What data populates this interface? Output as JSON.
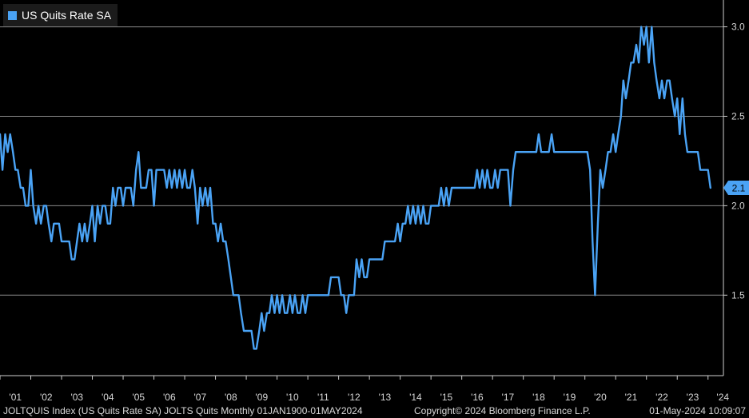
{
  "colors": {
    "background": "#000000",
    "line": "#4aa3f5",
    "grid": "#8a8a8a",
    "axis": "#cfcfcf",
    "text": "#d8d8d8",
    "last_label_bg": "#4aa3f5"
  },
  "legend": {
    "label": "US Quits Rate SA"
  },
  "footer": {
    "left": "JOLTQUIS Index (US Quits Rate SA) JOLTS Quits  Monthly 01JAN1900-01MAY2024",
    "middle": "Copyright© 2024 Bloomberg Finance L.P.",
    "right": "01-May-2024 10:09:07"
  },
  "chart_data": {
    "type": "line",
    "title": "",
    "xlabel": "",
    "ylabel": "",
    "ylim": [
      1.05,
      3.15
    ],
    "xlim": [
      2001.0,
      2024.5
    ],
    "y_ticks": [
      1.5,
      2.0,
      2.5,
      3.0
    ],
    "y_tick_labels": [
      "1.5",
      "2.0",
      "2.5",
      "3.0"
    ],
    "x_ticks": [
      2001,
      2002,
      2003,
      2004,
      2005,
      2006,
      2007,
      2008,
      2009,
      2010,
      2011,
      2012,
      2013,
      2014,
      2015,
      2016,
      2017,
      2018,
      2019,
      2020,
      2021,
      2022,
      2023,
      2024
    ],
    "x_tick_labels": [
      "'01",
      "'02",
      "'03",
      "'04",
      "'05",
      "'06",
      "'07",
      "'08",
      "'09",
      "'10",
      "'11",
      "'12",
      "'13",
      "'14",
      "'15",
      "'16",
      "'17",
      "'18",
      "'19",
      "'20",
      "'21",
      "'22",
      "'23",
      "'24"
    ],
    "grid": "horizontal",
    "legend_position": "top-left",
    "last_value_label": "2.1",
    "series": [
      {
        "name": "US Quits Rate SA",
        "points": [
          [
            2001.0,
            2.4
          ],
          [
            2001.08,
            2.2
          ],
          [
            2001.17,
            2.4
          ],
          [
            2001.25,
            2.3
          ],
          [
            2001.33,
            2.4
          ],
          [
            2001.42,
            2.3
          ],
          [
            2001.5,
            2.2
          ],
          [
            2001.58,
            2.2
          ],
          [
            2001.67,
            2.1
          ],
          [
            2001.75,
            2.1
          ],
          [
            2001.83,
            2.0
          ],
          [
            2001.92,
            2.0
          ],
          [
            2002.0,
            2.2
          ],
          [
            2002.08,
            2.0
          ],
          [
            2002.17,
            1.9
          ],
          [
            2002.25,
            2.0
          ],
          [
            2002.33,
            1.9
          ],
          [
            2002.42,
            2.0
          ],
          [
            2002.5,
            2.0
          ],
          [
            2002.58,
            1.9
          ],
          [
            2002.67,
            1.8
          ],
          [
            2002.75,
            1.9
          ],
          [
            2002.83,
            1.9
          ],
          [
            2002.92,
            1.9
          ],
          [
            2003.0,
            1.8
          ],
          [
            2003.08,
            1.8
          ],
          [
            2003.17,
            1.8
          ],
          [
            2003.25,
            1.8
          ],
          [
            2003.33,
            1.7
          ],
          [
            2003.42,
            1.7
          ],
          [
            2003.5,
            1.8
          ],
          [
            2003.58,
            1.9
          ],
          [
            2003.67,
            1.8
          ],
          [
            2003.75,
            1.9
          ],
          [
            2003.83,
            1.8
          ],
          [
            2003.92,
            1.9
          ],
          [
            2004.0,
            2.0
          ],
          [
            2004.08,
            1.8
          ],
          [
            2004.17,
            2.0
          ],
          [
            2004.25,
            1.9
          ],
          [
            2004.33,
            2.0
          ],
          [
            2004.42,
            2.0
          ],
          [
            2004.5,
            1.9
          ],
          [
            2004.58,
            1.9
          ],
          [
            2004.67,
            2.1
          ],
          [
            2004.75,
            2.0
          ],
          [
            2004.83,
            2.1
          ],
          [
            2004.92,
            2.1
          ],
          [
            2005.0,
            2.0
          ],
          [
            2005.08,
            2.1
          ],
          [
            2005.17,
            2.1
          ],
          [
            2005.25,
            2.1
          ],
          [
            2005.33,
            2.0
          ],
          [
            2005.42,
            2.2
          ],
          [
            2005.5,
            2.3
          ],
          [
            2005.58,
            2.1
          ],
          [
            2005.67,
            2.1
          ],
          [
            2005.75,
            2.1
          ],
          [
            2005.83,
            2.2
          ],
          [
            2005.92,
            2.2
          ],
          [
            2006.0,
            2.0
          ],
          [
            2006.08,
            2.2
          ],
          [
            2006.17,
            2.2
          ],
          [
            2006.25,
            2.2
          ],
          [
            2006.33,
            2.2
          ],
          [
            2006.42,
            2.1
          ],
          [
            2006.5,
            2.2
          ],
          [
            2006.58,
            2.1
          ],
          [
            2006.67,
            2.2
          ],
          [
            2006.75,
            2.1
          ],
          [
            2006.83,
            2.2
          ],
          [
            2006.92,
            2.1
          ],
          [
            2007.0,
            2.2
          ],
          [
            2007.08,
            2.1
          ],
          [
            2007.17,
            2.1
          ],
          [
            2007.25,
            2.2
          ],
          [
            2007.33,
            2.1
          ],
          [
            2007.42,
            1.9
          ],
          [
            2007.5,
            2.1
          ],
          [
            2007.58,
            2.0
          ],
          [
            2007.67,
            2.1
          ],
          [
            2007.75,
            2.0
          ],
          [
            2007.83,
            2.1
          ],
          [
            2007.92,
            1.9
          ],
          [
            2008.0,
            1.9
          ],
          [
            2008.08,
            1.8
          ],
          [
            2008.17,
            1.9
          ],
          [
            2008.25,
            1.8
          ],
          [
            2008.33,
            1.8
          ],
          [
            2008.42,
            1.7
          ],
          [
            2008.5,
            1.6
          ],
          [
            2008.58,
            1.5
          ],
          [
            2008.67,
            1.5
          ],
          [
            2008.75,
            1.5
          ],
          [
            2008.83,
            1.4
          ],
          [
            2008.92,
            1.3
          ],
          [
            2009.0,
            1.3
          ],
          [
            2009.08,
            1.3
          ],
          [
            2009.17,
            1.3
          ],
          [
            2009.25,
            1.2
          ],
          [
            2009.33,
            1.2
          ],
          [
            2009.42,
            1.3
          ],
          [
            2009.5,
            1.4
          ],
          [
            2009.58,
            1.3
          ],
          [
            2009.67,
            1.4
          ],
          [
            2009.75,
            1.4
          ],
          [
            2009.83,
            1.5
          ],
          [
            2009.92,
            1.4
          ],
          [
            2010.0,
            1.5
          ],
          [
            2010.08,
            1.4
          ],
          [
            2010.17,
            1.5
          ],
          [
            2010.25,
            1.4
          ],
          [
            2010.33,
            1.4
          ],
          [
            2010.42,
            1.5
          ],
          [
            2010.5,
            1.4
          ],
          [
            2010.58,
            1.5
          ],
          [
            2010.67,
            1.4
          ],
          [
            2010.75,
            1.4
          ],
          [
            2010.83,
            1.5
          ],
          [
            2010.92,
            1.4
          ],
          [
            2011.0,
            1.5
          ],
          [
            2011.08,
            1.5
          ],
          [
            2011.17,
            1.5
          ],
          [
            2011.25,
            1.5
          ],
          [
            2011.33,
            1.5
          ],
          [
            2011.42,
            1.5
          ],
          [
            2011.5,
            1.5
          ],
          [
            2011.58,
            1.5
          ],
          [
            2011.67,
            1.5
          ],
          [
            2011.75,
            1.6
          ],
          [
            2011.83,
            1.6
          ],
          [
            2011.92,
            1.6
          ],
          [
            2012.0,
            1.6
          ],
          [
            2012.08,
            1.5
          ],
          [
            2012.17,
            1.5
          ],
          [
            2012.25,
            1.4
          ],
          [
            2012.33,
            1.5
          ],
          [
            2012.42,
            1.5
          ],
          [
            2012.5,
            1.5
          ],
          [
            2012.58,
            1.7
          ],
          [
            2012.67,
            1.6
          ],
          [
            2012.75,
            1.7
          ],
          [
            2012.83,
            1.6
          ],
          [
            2012.92,
            1.6
          ],
          [
            2013.0,
            1.7
          ],
          [
            2013.08,
            1.7
          ],
          [
            2013.17,
            1.7
          ],
          [
            2013.25,
            1.7
          ],
          [
            2013.33,
            1.7
          ],
          [
            2013.42,
            1.7
          ],
          [
            2013.5,
            1.8
          ],
          [
            2013.58,
            1.8
          ],
          [
            2013.67,
            1.8
          ],
          [
            2013.75,
            1.8
          ],
          [
            2013.83,
            1.8
          ],
          [
            2013.92,
            1.9
          ],
          [
            2014.0,
            1.8
          ],
          [
            2014.08,
            1.9
          ],
          [
            2014.17,
            1.9
          ],
          [
            2014.25,
            2.0
          ],
          [
            2014.33,
            1.9
          ],
          [
            2014.42,
            2.0
          ],
          [
            2014.5,
            1.9
          ],
          [
            2014.58,
            2.0
          ],
          [
            2014.67,
            1.9
          ],
          [
            2014.75,
            2.0
          ],
          [
            2014.83,
            1.9
          ],
          [
            2014.92,
            1.9
          ],
          [
            2015.0,
            2.0
          ],
          [
            2015.08,
            2.0
          ],
          [
            2015.17,
            2.0
          ],
          [
            2015.25,
            2.0
          ],
          [
            2015.33,
            2.1
          ],
          [
            2015.42,
            2.0
          ],
          [
            2015.5,
            2.1
          ],
          [
            2015.58,
            2.0
          ],
          [
            2015.67,
            2.1
          ],
          [
            2015.75,
            2.1
          ],
          [
            2015.83,
            2.1
          ],
          [
            2015.92,
            2.1
          ],
          [
            2016.0,
            2.1
          ],
          [
            2016.08,
            2.1
          ],
          [
            2016.17,
            2.1
          ],
          [
            2016.25,
            2.1
          ],
          [
            2016.33,
            2.1
          ],
          [
            2016.42,
            2.1
          ],
          [
            2016.5,
            2.2
          ],
          [
            2016.58,
            2.1
          ],
          [
            2016.67,
            2.2
          ],
          [
            2016.75,
            2.1
          ],
          [
            2016.83,
            2.2
          ],
          [
            2016.92,
            2.1
          ],
          [
            2017.0,
            2.1
          ],
          [
            2017.08,
            2.2
          ],
          [
            2017.17,
            2.1
          ],
          [
            2017.25,
            2.2
          ],
          [
            2017.33,
            2.2
          ],
          [
            2017.42,
            2.2
          ],
          [
            2017.5,
            2.2
          ],
          [
            2017.58,
            2.0
          ],
          [
            2017.67,
            2.2
          ],
          [
            2017.75,
            2.3
          ],
          [
            2017.83,
            2.3
          ],
          [
            2017.92,
            2.3
          ],
          [
            2018.0,
            2.3
          ],
          [
            2018.08,
            2.3
          ],
          [
            2018.17,
            2.3
          ],
          [
            2018.25,
            2.3
          ],
          [
            2018.33,
            2.3
          ],
          [
            2018.42,
            2.3
          ],
          [
            2018.5,
            2.4
          ],
          [
            2018.58,
            2.3
          ],
          [
            2018.67,
            2.3
          ],
          [
            2018.75,
            2.3
          ],
          [
            2018.83,
            2.3
          ],
          [
            2018.92,
            2.4
          ],
          [
            2019.0,
            2.3
          ],
          [
            2019.08,
            2.3
          ],
          [
            2019.17,
            2.3
          ],
          [
            2019.25,
            2.3
          ],
          [
            2019.33,
            2.3
          ],
          [
            2019.42,
            2.3
          ],
          [
            2019.5,
            2.3
          ],
          [
            2019.58,
            2.3
          ],
          [
            2019.67,
            2.3
          ],
          [
            2019.75,
            2.3
          ],
          [
            2019.83,
            2.3
          ],
          [
            2019.92,
            2.3
          ],
          [
            2020.0,
            2.3
          ],
          [
            2020.08,
            2.3
          ],
          [
            2020.17,
            2.2
          ],
          [
            2020.25,
            1.8
          ],
          [
            2020.33,
            1.5
          ],
          [
            2020.42,
            1.9
          ],
          [
            2020.5,
            2.2
          ],
          [
            2020.58,
            2.1
          ],
          [
            2020.67,
            2.2
          ],
          [
            2020.75,
            2.3
          ],
          [
            2020.83,
            2.3
          ],
          [
            2020.92,
            2.4
          ],
          [
            2021.0,
            2.3
          ],
          [
            2021.08,
            2.4
          ],
          [
            2021.17,
            2.5
          ],
          [
            2021.25,
            2.7
          ],
          [
            2021.33,
            2.6
          ],
          [
            2021.42,
            2.7
          ],
          [
            2021.5,
            2.8
          ],
          [
            2021.58,
            2.8
          ],
          [
            2021.67,
            2.9
          ],
          [
            2021.75,
            2.8
          ],
          [
            2021.83,
            3.0
          ],
          [
            2021.92,
            2.9
          ],
          [
            2022.0,
            3.0
          ],
          [
            2022.08,
            2.8
          ],
          [
            2022.17,
            3.0
          ],
          [
            2022.25,
            2.8
          ],
          [
            2022.33,
            2.7
          ],
          [
            2022.42,
            2.6
          ],
          [
            2022.5,
            2.7
          ],
          [
            2022.58,
            2.6
          ],
          [
            2022.67,
            2.7
          ],
          [
            2022.75,
            2.7
          ],
          [
            2022.83,
            2.6
          ],
          [
            2022.92,
            2.5
          ],
          [
            2023.0,
            2.6
          ],
          [
            2023.08,
            2.4
          ],
          [
            2023.17,
            2.6
          ],
          [
            2023.25,
            2.4
          ],
          [
            2023.33,
            2.3
          ],
          [
            2023.42,
            2.3
          ],
          [
            2023.5,
            2.3
          ],
          [
            2023.58,
            2.3
          ],
          [
            2023.67,
            2.3
          ],
          [
            2023.75,
            2.2
          ],
          [
            2023.83,
            2.2
          ],
          [
            2023.92,
            2.2
          ],
          [
            2024.0,
            2.2
          ],
          [
            2024.08,
            2.1
          ]
        ]
      }
    ]
  }
}
